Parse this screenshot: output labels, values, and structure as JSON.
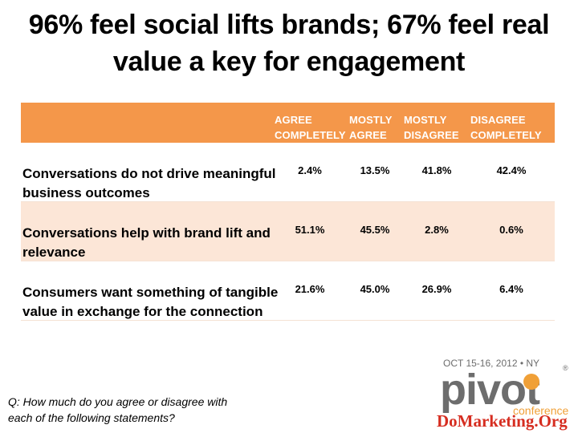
{
  "title": {
    "line1": "96% feel social lifts brands; 67% feel real",
    "line2": "value a key for engagement"
  },
  "table": {
    "columns": [
      {
        "line1": "AGREE",
        "line2": "COMPLETELY"
      },
      {
        "line1": "MOSTLY",
        "line2": "AGREE"
      },
      {
        "line1": "MOSTLY",
        "line2": "DISAGREE"
      },
      {
        "line1": "DISAGREE",
        "line2": "COMPLETELY"
      }
    ],
    "rows": [
      {
        "label_line1": "Conversations do not drive meaningful",
        "label_line2": "business outcomes",
        "values": [
          "2.4%",
          "13.5%",
          "41.8%",
          "42.4%"
        ]
      },
      {
        "label_line1": "Conversations help with brand lift and",
        "label_line2": "relevance",
        "values": [
          "51.1%",
          "45.5%",
          "2.8%",
          "0.6%"
        ]
      },
      {
        "label_line1": "Consumers want something of tangible",
        "label_line2": "value in exchange for the connection",
        "values": [
          "21.6%",
          "45.0%",
          "26.9%",
          "6.4%"
        ]
      }
    ]
  },
  "footnote": {
    "line1": "Q: How much do you agree or disagree with",
    "line2": "each of the following statements?"
  },
  "logo": {
    "date": "OCT 15-16, 2012 • NY",
    "name": "pivot",
    "registered": "®",
    "sub": "conference",
    "watermark": "DoMarketing.Org"
  },
  "colors": {
    "header_orange": "#f4974a",
    "alt_row": "#fce6d7",
    "logo_gray": "#6d6d6d",
    "logo_orange": "#f0a037",
    "watermark_red": "#d62d20"
  }
}
